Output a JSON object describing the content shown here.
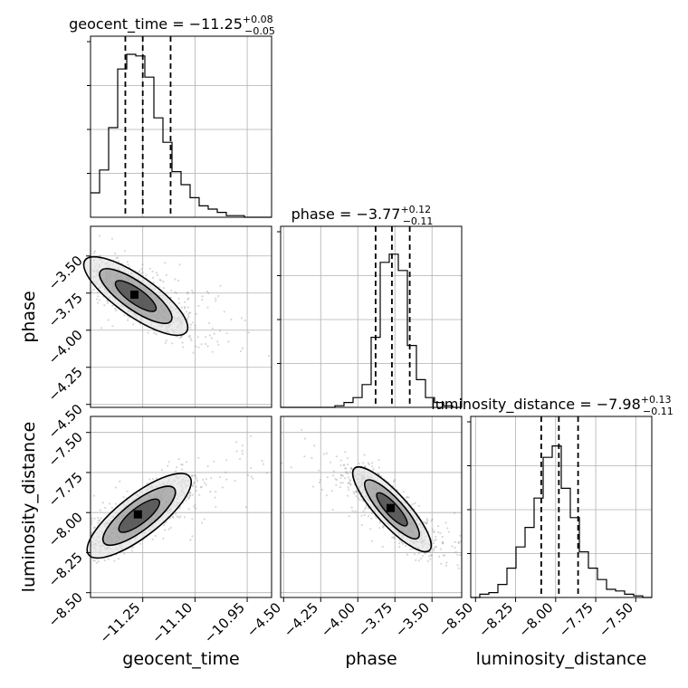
{
  "chart_data": {
    "type": "corner",
    "parameters": [
      "geocent_time",
      "phase",
      "luminosity_distance"
    ],
    "ranges": {
      "geocent_time": [
        -11.4,
        -10.88
      ],
      "phase": [
        -4.52,
        -3.3
      ],
      "luminosity_distance": [
        -8.53,
        -7.4
      ]
    },
    "ticks": {
      "geocent_time": [
        -11.25,
        -11.1,
        -10.95
      ],
      "phase_x": [
        -4.5,
        -4.25,
        -4.0,
        -3.75,
        -3.5
      ],
      "phase_y": [
        -3.5,
        -3.75,
        -4.0,
        -4.25,
        -4.5
      ],
      "luminosity_distance_x": [
        -8.5,
        -8.25,
        -8.0,
        -7.75,
        -7.5
      ],
      "luminosity_distance_y": [
        -7.5,
        -7.75,
        -8.0,
        -8.25,
        -8.5
      ]
    },
    "tick_labels": {
      "geocent_time": [
        "−11.25",
        "−11.10",
        "−10.95"
      ],
      "phase_x": [
        "−4.50",
        "−4.25",
        "−4.00",
        "−3.75",
        "−3.50"
      ],
      "phase_y": [
        "−3.50",
        "−3.75",
        "−4.00",
        "−4.25",
        "−4.50"
      ],
      "luminosity_distance_x": [
        "−8.50",
        "−8.25",
        "−8.00",
        "−7.75",
        "−7.50"
      ],
      "luminosity_distance_y": [
        "−7.50",
        "−7.75",
        "−8.00",
        "−8.25",
        "−8.50"
      ]
    },
    "axis_labels": {
      "geocent_time": "geocent_time",
      "phase": "phase",
      "luminosity_distance": "luminosity_distance"
    },
    "titles": [
      {
        "param": "geocent_time",
        "text": "geocent_time = −11.25",
        "plus": "+0.08",
        "minus": "−0.05"
      },
      {
        "param": "phase",
        "text": "phase = −3.77",
        "plus": "+0.12",
        "minus": "−0.11"
      },
      {
        "param": "luminosity_distance",
        "text": "luminosity_distance = −7.98",
        "plus": "+0.13",
        "minus": "−0.11"
      }
    ],
    "histograms": {
      "geocent_time": {
        "bin_edges": [
          -11.4,
          -11.374,
          -11.348,
          -11.322,
          -11.296,
          -11.27,
          -11.244,
          -11.218,
          -11.192,
          -11.166,
          -11.14,
          -11.114,
          -11.088,
          -11.062,
          -11.036,
          -11.01,
          -10.984,
          -10.958,
          -10.932,
          -10.906,
          -10.88
        ],
        "counts": [
          0.15,
          0.29,
          0.55,
          0.91,
          1.0,
          0.99,
          0.86,
          0.61,
          0.46,
          0.28,
          0.2,
          0.12,
          0.07,
          0.05,
          0.03,
          0.01,
          0.01,
          0.0,
          0.0,
          0.0
        ],
        "quantiles": [
          -11.3,
          -11.25,
          -11.17
        ]
      },
      "phase": {
        "bin_edges": [
          -4.52,
          -4.459,
          -4.398,
          -4.337,
          -4.276,
          -4.215,
          -4.154,
          -4.093,
          -4.032,
          -3.971,
          -3.91,
          -3.849,
          -3.788,
          -3.727,
          -3.666,
          -3.605,
          -3.544,
          -3.483,
          -3.422,
          -3.361,
          -3.3
        ],
        "counts": [
          0.0,
          0.0,
          0.0,
          0.0,
          0.0,
          0.0,
          0.01,
          0.03,
          0.06,
          0.14,
          0.43,
          0.89,
          0.94,
          0.84,
          0.38,
          0.17,
          0.06,
          0.03,
          0.01,
          0.0
        ],
        "quantiles": [
          -3.88,
          -3.77,
          -3.65
        ]
      },
      "luminosity_distance": {
        "bin_edges": [
          -8.53,
          -8.4735,
          -8.417,
          -8.3605,
          -8.304,
          -8.2475,
          -8.191,
          -8.1345,
          -8.078,
          -8.0215,
          -7.965,
          -7.9085,
          -7.852,
          -7.7955,
          -7.739,
          -7.6825,
          -7.626,
          -7.5695,
          -7.513,
          -7.4565,
          -7.4
        ],
        "counts": [
          0.0,
          0.02,
          0.03,
          0.08,
          0.18,
          0.31,
          0.43,
          0.61,
          0.86,
          0.93,
          0.67,
          0.49,
          0.28,
          0.18,
          0.11,
          0.05,
          0.04,
          0.02,
          0.01,
          0.0
        ],
        "quantiles": [
          -8.09,
          -7.98,
          -7.86
        ]
      }
    },
    "correlations": [
      {
        "x": "geocent_time",
        "y": "phase",
        "center": [
          -11.27,
          -3.77
        ],
        "rho": -0.8
      },
      {
        "x": "geocent_time",
        "y": "luminosity_distance",
        "center": [
          -11.26,
          -8.02
        ],
        "rho": 0.8
      },
      {
        "x": "phase",
        "y": "luminosity_distance",
        "center": [
          -3.77,
          -7.98
        ],
        "rho": -0.85
      }
    ],
    "grid": true
  },
  "colors": {
    "ink": "#000000",
    "grid": "#b0b0b0",
    "scatter": "#6e6e6e",
    "fill_dark": "#3c3c3c",
    "fill_mid": "#9a9a9a",
    "fill_light": "#e6e6e6"
  }
}
